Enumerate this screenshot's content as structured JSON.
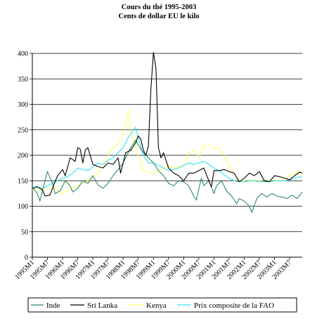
{
  "chart_data": {
    "type": "line",
    "title": "Cours du thé 1995-2003",
    "subtitle": "Cents de dollar EU le kilo",
    "xlabel": "",
    "ylabel": "",
    "ylim": [
      0,
      400
    ],
    "yticks": [
      0,
      50,
      100,
      150,
      200,
      250,
      300,
      350,
      400
    ],
    "grid": true,
    "legend": "bottom",
    "x_start": "1995M1",
    "x_end": "2003M12",
    "x_tick_labels": [
      "1995M1",
      "1995M7",
      "1996M1",
      "1996M7",
      "1997M1",
      "1997M7",
      "1998M1",
      "1998M7",
      "1999M1",
      "1999M7",
      "2000M1",
      "2000M7",
      "2001M1",
      "2001M7",
      "2002M1",
      "2002M7",
      "2003M1",
      "2003M7"
    ],
    "x_tick_index": [
      0,
      6,
      12,
      18,
      24,
      30,
      36,
      42,
      48,
      54,
      60,
      66,
      72,
      78,
      84,
      90,
      96,
      102
    ],
    "series": [
      {
        "name": "Inde",
        "color": "#2e8b6a",
        "points": [
          [
            0,
            137
          ],
          [
            2,
            125
          ],
          [
            3,
            110
          ],
          [
            5,
            150
          ],
          [
            6,
            168
          ],
          [
            8,
            145
          ],
          [
            9,
            125
          ],
          [
            11,
            130
          ],
          [
            13,
            150
          ],
          [
            15,
            140
          ],
          [
            16,
            128
          ],
          [
            18,
            135
          ],
          [
            20,
            150
          ],
          [
            22,
            145
          ],
          [
            24,
            160
          ],
          [
            26,
            142
          ],
          [
            28,
            135
          ],
          [
            30,
            145
          ],
          [
            32,
            160
          ],
          [
            34,
            172
          ],
          [
            36,
            185
          ],
          [
            38,
            205
          ],
          [
            39,
            215
          ],
          [
            41,
            230
          ],
          [
            42,
            220
          ],
          [
            44,
            205
          ],
          [
            46,
            195
          ],
          [
            48,
            185
          ],
          [
            50,
            170
          ],
          [
            52,
            160
          ],
          [
            54,
            145
          ],
          [
            56,
            140
          ],
          [
            58,
            150
          ],
          [
            60,
            148
          ],
          [
            62,
            140
          ],
          [
            64,
            120
          ],
          [
            65,
            112
          ],
          [
            67,
            155
          ],
          [
            68,
            140
          ],
          [
            70,
            150
          ],
          [
            72,
            125
          ],
          [
            73,
            140
          ],
          [
            75,
            150
          ],
          [
            77,
            130
          ],
          [
            79,
            120
          ],
          [
            81,
            105
          ],
          [
            82,
            115
          ],
          [
            84,
            110
          ],
          [
            86,
            100
          ],
          [
            87,
            88
          ],
          [
            89,
            115
          ],
          [
            91,
            125
          ],
          [
            93,
            118
          ],
          [
            95,
            125
          ],
          [
            97,
            120
          ],
          [
            99,
            118
          ],
          [
            101,
            115
          ],
          [
            103,
            122
          ],
          [
            105,
            115
          ],
          [
            107,
            128
          ]
        ]
      },
      {
        "name": "Sri Lanka",
        "color": "#000000",
        "points": [
          [
            0,
            135
          ],
          [
            2,
            138
          ],
          [
            4,
            132
          ],
          [
            5,
            120
          ],
          [
            7,
            122
          ],
          [
            9,
            148
          ],
          [
            10,
            160
          ],
          [
            12,
            172
          ],
          [
            13,
            160
          ],
          [
            15,
            195
          ],
          [
            17,
            188
          ],
          [
            18,
            215
          ],
          [
            19,
            212
          ],
          [
            20,
            185
          ],
          [
            21,
            210
          ],
          [
            22,
            215
          ],
          [
            24,
            182
          ],
          [
            26,
            178
          ],
          [
            28,
            175
          ],
          [
            30,
            185
          ],
          [
            32,
            182
          ],
          [
            34,
            195
          ],
          [
            35,
            165
          ],
          [
            37,
            205
          ],
          [
            39,
            210
          ],
          [
            41,
            225
          ],
          [
            42,
            238
          ],
          [
            43,
            232
          ],
          [
            44,
            210
          ],
          [
            45,
            200
          ],
          [
            46,
            218
          ],
          [
            47,
            330
          ],
          [
            48,
            402
          ],
          [
            49,
            370
          ],
          [
            50,
            215
          ],
          [
            51,
            195
          ],
          [
            52,
            205
          ],
          [
            54,
            175
          ],
          [
            56,
            165
          ],
          [
            58,
            160
          ],
          [
            60,
            150
          ],
          [
            62,
            165
          ],
          [
            64,
            165
          ],
          [
            66,
            170
          ],
          [
            68,
            175
          ],
          [
            70,
            150
          ],
          [
            71,
            138
          ],
          [
            72,
            170
          ],
          [
            74,
            170
          ],
          [
            76,
            172
          ],
          [
            78,
            168
          ],
          [
            80,
            165
          ],
          [
            82,
            148
          ],
          [
            84,
            155
          ],
          [
            86,
            165
          ],
          [
            88,
            160
          ],
          [
            90,
            168
          ],
          [
            92,
            150
          ],
          [
            94,
            148
          ],
          [
            96,
            160
          ],
          [
            98,
            158
          ],
          [
            100,
            155
          ],
          [
            102,
            152
          ],
          [
            104,
            160
          ],
          [
            106,
            167
          ],
          [
            107,
            165
          ]
        ]
      },
      {
        "name": "Kenya",
        "color": "#ffff66",
        "points": [
          [
            0,
            132
          ],
          [
            2,
            138
          ],
          [
            4,
            130
          ],
          [
            6,
            135
          ],
          [
            8,
            140
          ],
          [
            10,
            132
          ],
          [
            12,
            125
          ],
          [
            14,
            130
          ],
          [
            16,
            135
          ],
          [
            18,
            140
          ],
          [
            20,
            145
          ],
          [
            22,
            150
          ],
          [
            24,
            158
          ],
          [
            26,
            165
          ],
          [
            28,
            180
          ],
          [
            30,
            200
          ],
          [
            32,
            215
          ],
          [
            34,
            222
          ],
          [
            36,
            240
          ],
          [
            37,
            262
          ],
          [
            38,
            290
          ],
          [
            39,
            255
          ],
          [
            40,
            230
          ],
          [
            42,
            200
          ],
          [
            44,
            170
          ],
          [
            46,
            165
          ],
          [
            48,
            165
          ],
          [
            50,
            170
          ],
          [
            52,
            175
          ],
          [
            54,
            180
          ],
          [
            56,
            175
          ],
          [
            58,
            178
          ],
          [
            60,
            178
          ],
          [
            62,
            205
          ],
          [
            64,
            210
          ],
          [
            66,
            195
          ],
          [
            68,
            218
          ],
          [
            70,
            220
          ],
          [
            72,
            212
          ],
          [
            74,
            215
          ],
          [
            76,
            200
          ],
          [
            78,
            180
          ],
          [
            80,
            165
          ],
          [
            82,
            150
          ],
          [
            84,
            150
          ],
          [
            86,
            148
          ],
          [
            88,
            152
          ],
          [
            90,
            150
          ],
          [
            92,
            148
          ],
          [
            94,
            150
          ],
          [
            96,
            152
          ],
          [
            98,
            150
          ],
          [
            100,
            155
          ],
          [
            102,
            160
          ],
          [
            104,
            165
          ],
          [
            106,
            168
          ],
          [
            107,
            160
          ]
        ]
      },
      {
        "name": "Prix composite de la FAO",
        "color": "#33e0f0",
        "points": [
          [
            0,
            140
          ],
          [
            2,
            138
          ],
          [
            4,
            135
          ],
          [
            6,
            140
          ],
          [
            8,
            145
          ],
          [
            10,
            150
          ],
          [
            12,
            155
          ],
          [
            14,
            158
          ],
          [
            16,
            165
          ],
          [
            18,
            175
          ],
          [
            20,
            172
          ],
          [
            22,
            170
          ],
          [
            24,
            178
          ],
          [
            26,
            185
          ],
          [
            28,
            182
          ],
          [
            30,
            190
          ],
          [
            32,
            195
          ],
          [
            34,
            205
          ],
          [
            36,
            215
          ],
          [
            38,
            235
          ],
          [
            40,
            250
          ],
          [
            41,
            255
          ],
          [
            42,
            235
          ],
          [
            44,
            200
          ],
          [
            46,
            185
          ],
          [
            48,
            185
          ],
          [
            50,
            180
          ],
          [
            52,
            175
          ],
          [
            54,
            170
          ],
          [
            56,
            172
          ],
          [
            58,
            175
          ],
          [
            60,
            180
          ],
          [
            62,
            185
          ],
          [
            64,
            182
          ],
          [
            66,
            185
          ],
          [
            68,
            188
          ],
          [
            70,
            182
          ],
          [
            72,
            175
          ],
          [
            74,
            170
          ],
          [
            76,
            162
          ],
          [
            78,
            155
          ],
          [
            80,
            150
          ],
          [
            82,
            148
          ],
          [
            84,
            148
          ],
          [
            86,
            150
          ],
          [
            88,
            150
          ],
          [
            90,
            148
          ],
          [
            92,
            148
          ],
          [
            94,
            148
          ],
          [
            96,
            150
          ],
          [
            98,
            150
          ],
          [
            100,
            150
          ],
          [
            102,
            152
          ],
          [
            104,
            155
          ],
          [
            106,
            158
          ],
          [
            107,
            155
          ]
        ]
      }
    ]
  }
}
